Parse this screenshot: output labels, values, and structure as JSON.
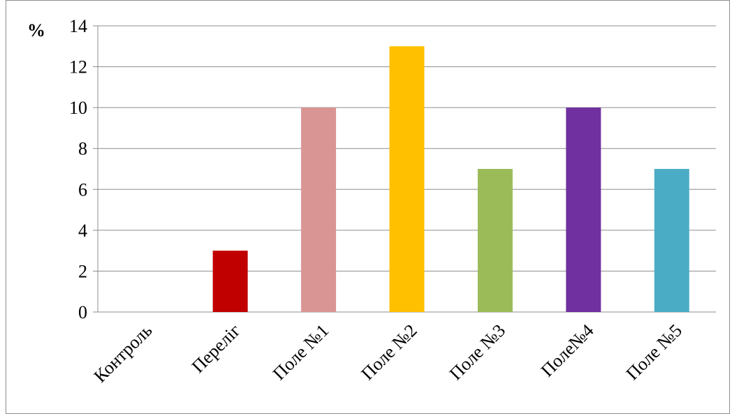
{
  "chart_data": {
    "type": "bar",
    "ylabel": "%",
    "ylim": [
      0,
      14
    ],
    "yticks": [
      "0",
      "2",
      "4",
      "6",
      "8",
      "10",
      "12",
      "14"
    ],
    "grid": true,
    "categories": [
      "Контроль",
      "Переліг",
      "Поле №1",
      "Поле №2",
      "Поле №3",
      "Поле№4",
      "Поле №5"
    ],
    "values": [
      0,
      3,
      10,
      13,
      7,
      10,
      7
    ],
    "colors": [
      "#c00000",
      "#c00000",
      "#d99594",
      "#ffc000",
      "#9bbb59",
      "#7030a0",
      "#4bacc6"
    ],
    "grid_color": "#8c8c8c"
  }
}
